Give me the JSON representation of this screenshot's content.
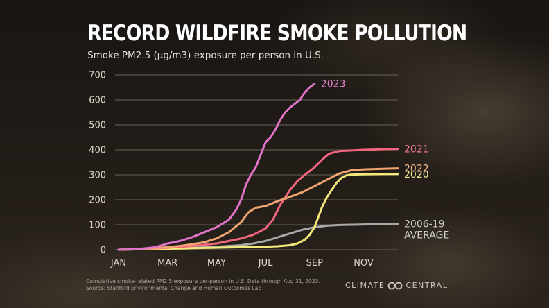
{
  "page": {
    "title": "RECORD WILDFIRE SMOKE POLLUTION",
    "subtitle": "Smoke PM2.5 (µg/m3) exposure per person in U.S.",
    "footnote_line1": "Cumulative smoke-related PM2.5 exposure per-person in U.S. Data through Aug 31, 2023.",
    "footnote_line2": "Source: Stanford Environmental Change and Human Outcomes Lab",
    "brand_left": "CLIMATE",
    "brand_right": "CENTRAL",
    "brand_icon": "climate-central-logo-icon",
    "background_color": "#1e1915"
  },
  "chart_data": {
    "type": "line",
    "title": "RECORD WILDFIRE SMOKE POLLUTION",
    "subtitle": "Smoke PM2.5 (µg/m3) exposure per person in U.S.",
    "x_unit": "month",
    "xlim": [
      1,
      12.4
    ],
    "ylim": [
      0,
      700
    ],
    "x_tick_values": [
      1,
      3,
      5,
      7,
      9,
      11
    ],
    "x_tick_labels": [
      "JAN",
      "MAR",
      "MAY",
      "JUL",
      "SEP",
      "NOV"
    ],
    "y_ticks": [
      0,
      100,
      200,
      300,
      400,
      500,
      600,
      700
    ],
    "grid": "horizontal",
    "grid_color": "#6a635b",
    "series": [
      {
        "name": "2006-19 AVERAGE",
        "label_lines": [
          "2006-19",
          "AVERAGE"
        ],
        "color": "#a9a9a9",
        "label_color": "#cfcfcf",
        "x": [
          1,
          2,
          3,
          4,
          5,
          6,
          6.5,
          7,
          7.5,
          8,
          8.5,
          9,
          9.5,
          10,
          10.5,
          11,
          12,
          12.4
        ],
        "y": [
          0,
          2,
          5,
          8,
          12,
          18,
          25,
          35,
          50,
          65,
          80,
          90,
          96,
          99,
          100,
          101,
          103,
          104
        ]
      },
      {
        "name": "2020",
        "label_lines": [
          "2020"
        ],
        "color": "#f3e87a",
        "label_color": "#f6ee95",
        "x": [
          1,
          2,
          3,
          4,
          5,
          6,
          7,
          7.5,
          8,
          8.3,
          8.6,
          8.8,
          9,
          9.15,
          9.3,
          9.5,
          9.7,
          9.9,
          10.1,
          10.3,
          10.5,
          11,
          12,
          12.4
        ],
        "y": [
          0,
          2,
          4,
          6,
          8,
          10,
          12,
          14,
          18,
          25,
          40,
          60,
          90,
          130,
          170,
          210,
          240,
          268,
          288,
          298,
          301,
          302,
          303,
          303
        ]
      },
      {
        "name": "2021",
        "label_lines": [
          "2021"
        ],
        "color": "#f2667e",
        "label_color": "#f47890",
        "x": [
          1,
          2,
          3,
          4,
          5,
          5.5,
          6,
          6.5,
          7,
          7.3,
          7.6,
          8,
          8.3,
          8.6,
          9,
          9.3,
          9.6,
          10,
          11,
          12,
          12.4
        ],
        "y": [
          0,
          3,
          8,
          15,
          25,
          35,
          45,
          60,
          85,
          120,
          180,
          240,
          275,
          300,
          330,
          360,
          385,
          395,
          400,
          403,
          404
        ]
      },
      {
        "name": "2022",
        "label_lines": [
          "2022"
        ],
        "color": "#f2a573",
        "label_color": "#f6b888",
        "x": [
          1,
          2,
          3,
          3.5,
          4,
          4.5,
          5,
          5.5,
          6,
          6.3,
          6.6,
          7,
          7.5,
          8,
          8.5,
          9,
          9.5,
          10,
          10.5,
          11,
          12,
          12.4
        ],
        "y": [
          0,
          4,
          10,
          15,
          22,
          30,
          45,
          70,
          110,
          150,
          168,
          175,
          195,
          212,
          230,
          255,
          280,
          305,
          318,
          322,
          325,
          326
        ]
      },
      {
        "name": "2023",
        "label_lines": [
          "2023"
        ],
        "color": "#e074c9",
        "label_color": "#e884d3",
        "x": [
          1,
          1.5,
          2,
          2.5,
          3,
          3.5,
          4,
          4.5,
          5,
          5.5,
          5.8,
          6,
          6.2,
          6.4,
          6.6,
          6.8,
          7,
          7.2,
          7.4,
          7.6,
          7.8,
          8,
          8.2,
          8.4,
          8.6,
          8.8,
          9
        ],
        "y": [
          0,
          2,
          5,
          10,
          25,
          35,
          50,
          70,
          90,
          120,
          160,
          200,
          260,
          300,
          330,
          380,
          430,
          450,
          480,
          520,
          550,
          570,
          585,
          600,
          630,
          650,
          665
        ]
      }
    ]
  }
}
